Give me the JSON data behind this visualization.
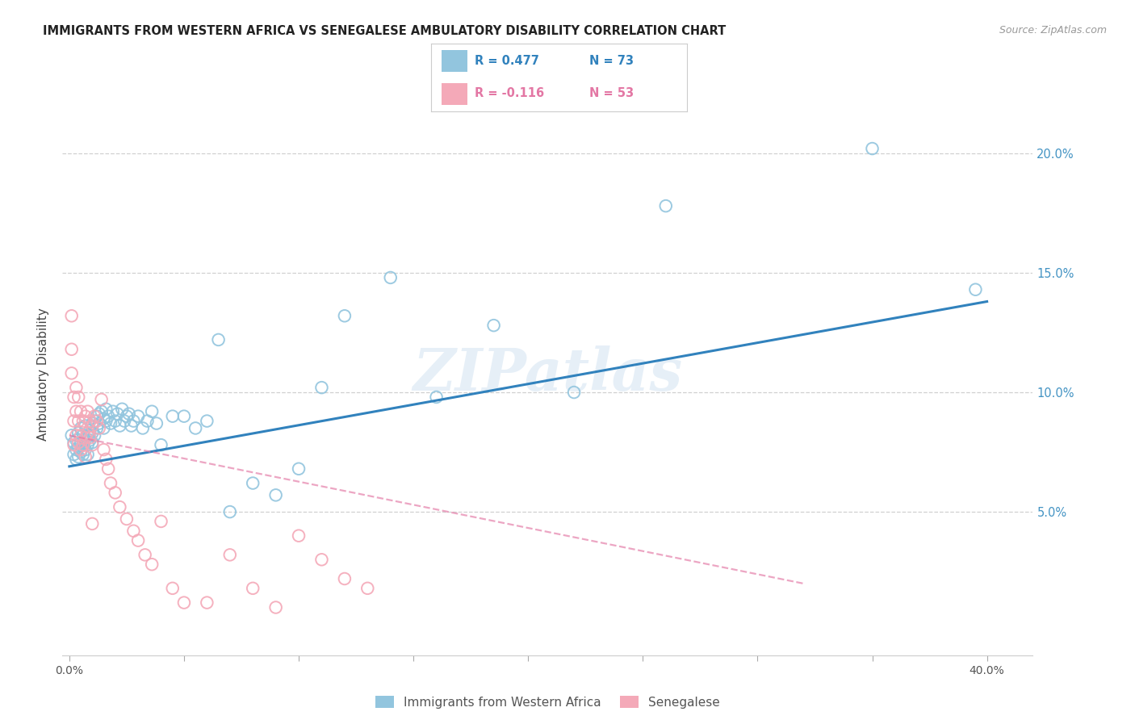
{
  "title": "IMMIGRANTS FROM WESTERN AFRICA VS SENEGALESE AMBULATORY DISABILITY CORRELATION CHART",
  "source": "Source: ZipAtlas.com",
  "xlabel_ticks": [
    "0.0%",
    "",
    "",
    "",
    "",
    "",
    "",
    "",
    "40.0%"
  ],
  "xlabel_vals": [
    0.0,
    0.05,
    0.1,
    0.15,
    0.2,
    0.25,
    0.3,
    0.35,
    0.4
  ],
  "ylabel_label": "Ambulatory Disability",
  "right_ytick_vals": [
    0.05,
    0.1,
    0.15,
    0.2
  ],
  "right_ytick_labels": [
    "5.0%",
    "10.0%",
    "15.0%",
    "20.0%"
  ],
  "xlim": [
    -0.003,
    0.42
  ],
  "ylim": [
    -0.01,
    0.225
  ],
  "legend_label_blue": "Immigrants from Western Africa",
  "legend_label_pink": "Senegalese",
  "watermark": "ZIPatlas",
  "blue_color": "#92c5de",
  "pink_color": "#f4a9b8",
  "blue_line_color": "#3182bd",
  "pink_line_color": "#e377a4",
  "title_color": "#222222",
  "right_axis_color": "#4393c3",
  "grid_color": "#d0d0d0",
  "blue_scatter_x": [
    0.001,
    0.002,
    0.002,
    0.003,
    0.003,
    0.003,
    0.004,
    0.004,
    0.004,
    0.005,
    0.005,
    0.005,
    0.006,
    0.006,
    0.006,
    0.007,
    0.007,
    0.007,
    0.008,
    0.008,
    0.008,
    0.009,
    0.009,
    0.01,
    0.01,
    0.01,
    0.011,
    0.011,
    0.012,
    0.012,
    0.013,
    0.013,
    0.014,
    0.015,
    0.015,
    0.016,
    0.016,
    0.017,
    0.018,
    0.019,
    0.02,
    0.021,
    0.022,
    0.023,
    0.024,
    0.025,
    0.026,
    0.027,
    0.028,
    0.03,
    0.032,
    0.034,
    0.036,
    0.038,
    0.04,
    0.045,
    0.05,
    0.055,
    0.06,
    0.065,
    0.07,
    0.08,
    0.09,
    0.1,
    0.11,
    0.12,
    0.14,
    0.16,
    0.185,
    0.22,
    0.26,
    0.35,
    0.395
  ],
  "blue_scatter_y": [
    0.082,
    0.079,
    0.074,
    0.08,
    0.076,
    0.072,
    0.083,
    0.077,
    0.073,
    0.085,
    0.079,
    0.075,
    0.082,
    0.078,
    0.074,
    0.086,
    0.08,
    0.076,
    0.082,
    0.078,
    0.074,
    0.084,
    0.08,
    0.087,
    0.083,
    0.079,
    0.088,
    0.082,
    0.09,
    0.085,
    0.091,
    0.087,
    0.092,
    0.089,
    0.085,
    0.093,
    0.088,
    0.09,
    0.087,
    0.092,
    0.088,
    0.091,
    0.086,
    0.093,
    0.088,
    0.09,
    0.091,
    0.086,
    0.088,
    0.09,
    0.085,
    0.088,
    0.092,
    0.087,
    0.078,
    0.09,
    0.09,
    0.085,
    0.088,
    0.122,
    0.05,
    0.062,
    0.057,
    0.068,
    0.102,
    0.132,
    0.148,
    0.098,
    0.128,
    0.1,
    0.178,
    0.202,
    0.143
  ],
  "pink_scatter_x": [
    0.001,
    0.001,
    0.001,
    0.002,
    0.002,
    0.002,
    0.003,
    0.003,
    0.003,
    0.004,
    0.004,
    0.004,
    0.005,
    0.005,
    0.005,
    0.006,
    0.006,
    0.007,
    0.007,
    0.007,
    0.008,
    0.008,
    0.009,
    0.009,
    0.01,
    0.01,
    0.011,
    0.012,
    0.013,
    0.014,
    0.015,
    0.016,
    0.017,
    0.018,
    0.02,
    0.022,
    0.025,
    0.028,
    0.03,
    0.033,
    0.036,
    0.04,
    0.045,
    0.05,
    0.06,
    0.07,
    0.08,
    0.09,
    0.1,
    0.11,
    0.12,
    0.13,
    0.01
  ],
  "pink_scatter_y": [
    0.132,
    0.118,
    0.108,
    0.098,
    0.088,
    0.078,
    0.102,
    0.092,
    0.082,
    0.098,
    0.088,
    0.079,
    0.092,
    0.082,
    0.076,
    0.088,
    0.078,
    0.09,
    0.081,
    0.073,
    0.092,
    0.083,
    0.088,
    0.081,
    0.086,
    0.078,
    0.09,
    0.088,
    0.085,
    0.097,
    0.076,
    0.072,
    0.068,
    0.062,
    0.058,
    0.052,
    0.047,
    0.042,
    0.038,
    0.032,
    0.028,
    0.046,
    0.018,
    0.012,
    0.012,
    0.032,
    0.018,
    0.01,
    0.04,
    0.03,
    0.022,
    0.018,
    0.045
  ],
  "blue_trendline_x": [
    0.0,
    0.4
  ],
  "blue_trendline_y": [
    0.069,
    0.138
  ],
  "pink_trendline_x": [
    0.0,
    0.32
  ],
  "pink_trendline_y": [
    0.082,
    0.02
  ]
}
